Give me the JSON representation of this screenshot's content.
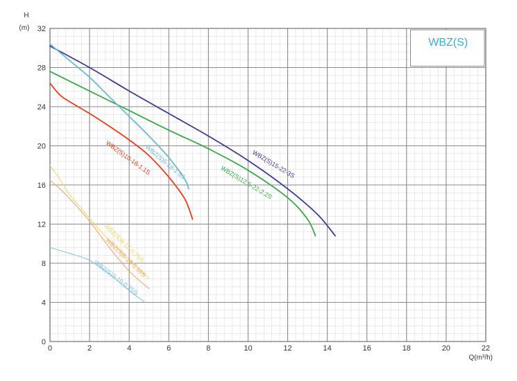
{
  "chart_data": {
    "type": "line",
    "title": "WBZ(S)",
    "xlabel": "Q(m³/h)",
    "ylabel": [
      "H",
      "(m)"
    ],
    "xlim": [
      0,
      22
    ],
    "ylim": [
      0,
      32
    ],
    "x_ticks": [
      "0",
      "2",
      "4",
      "6",
      "8",
      "10",
      "12",
      "14",
      "16",
      "18",
      "20",
      "22"
    ],
    "y_ticks": [
      "0",
      "4",
      "8",
      "12",
      "16",
      "20",
      "24",
      "28",
      "32"
    ],
    "grid": true,
    "title_color": "#3fa9d9",
    "series": [
      {
        "name": "WBZ(S)15-22-3S",
        "color": "#3b3a8c",
        "points": [
          [
            0,
            30.2
          ],
          [
            2,
            28.0
          ],
          [
            4,
            25.6
          ],
          [
            6,
            23.3
          ],
          [
            8,
            21.0
          ],
          [
            10,
            18.5
          ],
          [
            12,
            15.6
          ],
          [
            13.5,
            13.0
          ],
          [
            14.4,
            10.8
          ]
        ],
        "label_at": [
          10.2,
          19.2
        ],
        "label_angle": 31
      },
      {
        "name": "WBZ(S)12.5-22-2.2S",
        "color": "#3aa54a",
        "points": [
          [
            0,
            27.6
          ],
          [
            2,
            25.6
          ],
          [
            4,
            23.6
          ],
          [
            6,
            21.6
          ],
          [
            8,
            19.7
          ],
          [
            10,
            17.5
          ],
          [
            12,
            14.7
          ],
          [
            13,
            12.5
          ],
          [
            13.4,
            10.8
          ]
        ],
        "label_at": [
          8.6,
          17.6
        ],
        "label_angle": 31
      },
      {
        "name": "WBZ(S)5-18-1.5S",
        "color": "#6fb8cc",
        "points": [
          [
            0,
            30.4
          ],
          [
            1,
            28.7
          ],
          [
            2,
            27.0
          ],
          [
            3,
            25.0
          ],
          [
            4,
            23.0
          ],
          [
            5,
            21.0
          ],
          [
            6,
            18.8
          ],
          [
            6.8,
            16.6
          ],
          [
            7.0,
            15.6
          ]
        ],
        "label_at": [
          4.8,
          19.8
        ],
        "label_angle": 40
      },
      {
        "name": "WBZ(S)10-18-1.1S",
        "color": "#e23c1c",
        "points": [
          [
            0,
            26.4
          ],
          [
            0.5,
            25.2
          ],
          [
            1,
            24.5
          ],
          [
            2,
            23.3
          ],
          [
            3,
            22.0
          ],
          [
            4,
            20.6
          ],
          [
            5,
            19.0
          ],
          [
            6,
            16.8
          ],
          [
            6.8,
            14.6
          ],
          [
            7.2,
            12.5
          ]
        ],
        "label_at": [
          2.8,
          20.2
        ],
        "label_angle": 36
      },
      {
        "name": "WBZ(S)8-16-0.75S",
        "color": "#e8d66a",
        "points": [
          [
            0,
            18.0
          ],
          [
            0.5,
            16.6
          ],
          [
            1,
            15.0
          ],
          [
            2,
            12.6
          ],
          [
            3,
            10.3
          ],
          [
            4,
            8.4
          ],
          [
            5,
            6.4
          ]
        ],
        "label_at": [
          2.7,
          11.8
        ],
        "label_angle": 44
      },
      {
        "name": "WBZ(S)5-18-0.55S",
        "color": "#eea060",
        "points": [
          [
            0,
            16.5
          ],
          [
            0.5,
            15.6
          ],
          [
            1,
            14.6
          ],
          [
            2,
            12.3
          ],
          [
            3,
            9.6
          ],
          [
            4,
            7.2
          ],
          [
            5,
            5.4
          ]
        ],
        "label_at": [
          2.8,
          10.3
        ],
        "label_angle": 44
      },
      {
        "name": "WBZ(S)3-10-0.25S",
        "color": "#7cc0dd",
        "points": [
          [
            0,
            9.6
          ],
          [
            1,
            9.0
          ],
          [
            2,
            8.3
          ],
          [
            3,
            6.9
          ],
          [
            4,
            5.2
          ],
          [
            4.8,
            4.0
          ]
        ],
        "label_at": [
          2.2,
          8.0
        ],
        "label_angle": 37
      }
    ]
  }
}
